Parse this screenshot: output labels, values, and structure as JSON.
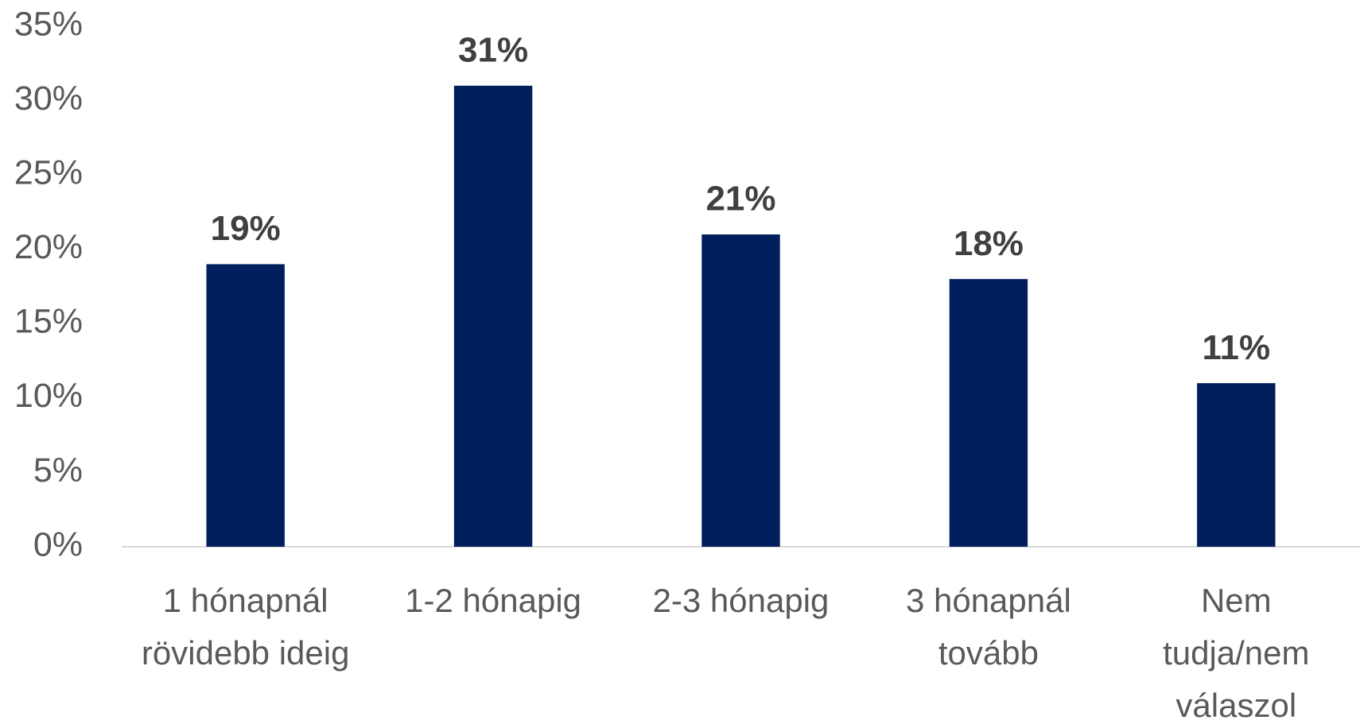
{
  "chart_data": {
    "type": "bar",
    "categories": [
      "1 hónapnál rövidebb ideig",
      "1-2 hónapig",
      "2-3 hónapig",
      "3 hónapnál tovább",
      "Nem tudja/nem válaszol"
    ],
    "values": [
      19,
      31,
      21,
      18,
      11
    ],
    "value_labels": [
      "19%",
      "31%",
      "21%",
      "18%",
      "11%"
    ],
    "color": "#001f5c",
    "ylim": [
      0,
      35
    ],
    "yticks": [
      {
        "value": 0,
        "label": "0%"
      },
      {
        "value": 5,
        "label": "5%"
      },
      {
        "value": 10,
        "label": "10%"
      },
      {
        "value": 15,
        "label": "15%"
      },
      {
        "value": 20,
        "label": "20%"
      },
      {
        "value": 25,
        "label": "25%"
      },
      {
        "value": 30,
        "label": "30%"
      },
      {
        "value": 35,
        "label": "35%"
      }
    ],
    "grid": false
  }
}
